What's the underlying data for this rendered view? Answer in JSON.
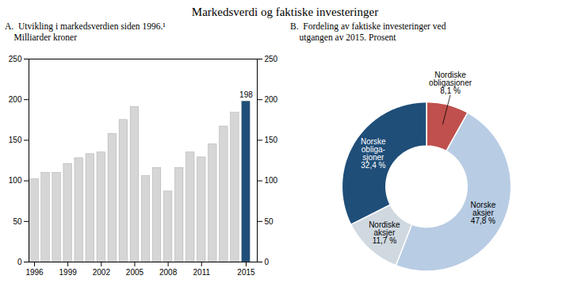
{
  "title": "Markedsverdi og faktiske investeringer",
  "chart_data": [
    {
      "type": "bar",
      "title": "A.  Utvikling i markedsverdien siden 1996.¹\n    Milliarder kroner",
      "x": [
        1996,
        1997,
        1998,
        1999,
        2000,
        2001,
        2002,
        2003,
        2004,
        2005,
        2006,
        2007,
        2008,
        2009,
        2010,
        2011,
        2012,
        2013,
        2014,
        2015
      ],
      "values": [
        102,
        110,
        110,
        121,
        128,
        133,
        135,
        158,
        175,
        191,
        106,
        116,
        87,
        116,
        135,
        129,
        145,
        167,
        184,
        198
      ],
      "colors": [
        "#d6d6d6",
        "#d6d6d6",
        "#d6d6d6",
        "#d6d6d6",
        "#d6d6d6",
        "#d6d6d6",
        "#d6d6d6",
        "#d6d6d6",
        "#d6d6d6",
        "#d6d6d6",
        "#d6d6d6",
        "#d6d6d6",
        "#d6d6d6",
        "#d6d6d6",
        "#d6d6d6",
        "#d6d6d6",
        "#d6d6d6",
        "#d6d6d6",
        "#d6d6d6",
        "#1f4e79"
      ],
      "xlim": [
        1995.5,
        2016.0
      ],
      "xticks": [
        1996,
        1999,
        2002,
        2005,
        2008,
        2011,
        2015
      ],
      "ylim": [
        0,
        250
      ],
      "yticks": [
        0,
        50,
        100,
        150,
        200,
        250
      ],
      "annotations": [
        {
          "x": 2015,
          "text": "198"
        }
      ]
    },
    {
      "type": "pie",
      "title": "B.  Fordeling av faktiske investeringer ved\n    utgangen av 2015. Prosent",
      "categories": [
        "Nordiske\nobligasjoner",
        "Norske\naksjer",
        "Nordiske\naksjer",
        "Norske\nobliga-\nsjoner"
      ],
      "values": [
        8.1,
        47.8,
        11.7,
        32.4
      ],
      "value_labels": [
        "8,1 %",
        "47,8 %",
        "11,7 %",
        "32,4 %"
      ],
      "colors": [
        "#c0504d",
        "#b8cce4",
        "#d0d8e0",
        "#1f4e79"
      ],
      "data_labels": true
    }
  ]
}
